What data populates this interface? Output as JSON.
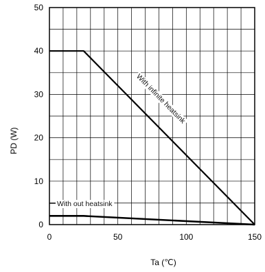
{
  "chart_data": {
    "type": "line",
    "xlabel": "Ta (℃)",
    "ylabel": "PD  (W)",
    "xlim": [
      0,
      150
    ],
    "ylim": [
      0,
      50
    ],
    "x_ticks": [
      "0",
      "50",
      "100",
      "150"
    ],
    "y_ticks": [
      "0",
      "10",
      "20",
      "30",
      "40",
      "50"
    ],
    "grid": true,
    "series": [
      {
        "name": "With infinite heatsink",
        "x": [
          0,
          25,
          150
        ],
        "y": [
          40,
          40,
          0
        ]
      },
      {
        "name": "With out heatsink",
        "x": [
          0,
          25,
          150
        ],
        "y": [
          2,
          2,
          0
        ]
      }
    ],
    "annotations": [
      "With infinite heatsink",
      "With out heatsink"
    ]
  }
}
